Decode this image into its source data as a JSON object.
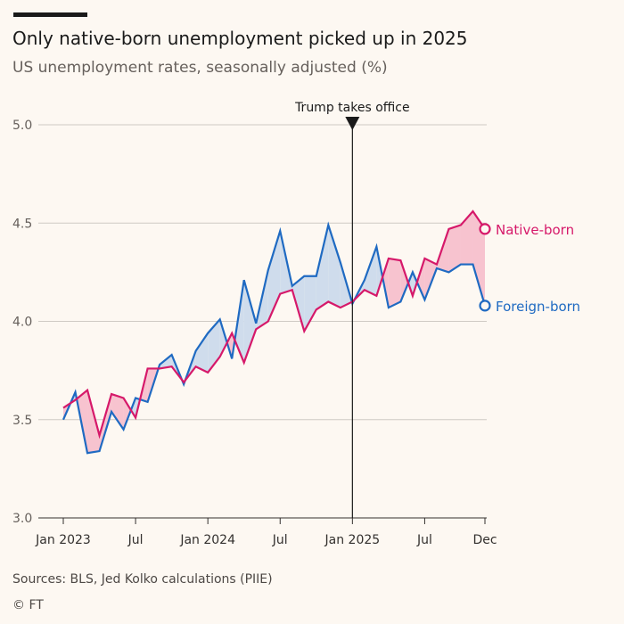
{
  "header": {
    "title": "Only native-born unemployment picked up in 2025",
    "subtitle": "US unemployment rates, seasonally adjusted (%)"
  },
  "footer": {
    "source": "Sources: BLS, Jed Kolko calculations (PIIE)",
    "credit": "© FT"
  },
  "colors": {
    "native": "#d6196a",
    "foreign": "#1f6ac2",
    "native_fill": "#f7c3cf",
    "foreign_fill": "#cfdcec",
    "grid": "#cfcac4",
    "axis": "#33302e"
  },
  "chart_data": {
    "type": "line",
    "title": "Only native-born unemployment picked up in 2025",
    "subtitle": "US unemployment rates, seasonally adjusted (%)",
    "ylim": [
      3.0,
      5.0
    ],
    "grid": true,
    "y_ticks": [
      "5.0",
      "4.5",
      "4.0",
      "3.5",
      "3.0"
    ],
    "x_ticks": [
      {
        "label": "Jan 2023",
        "x": "2023-01"
      },
      {
        "label": "Jul",
        "x": "2023-07"
      },
      {
        "label": "Jan 2024",
        "x": "2024-01"
      },
      {
        "label": "Jul",
        "x": "2024-07"
      },
      {
        "label": "Jan 2025",
        "x": "2025-01"
      },
      {
        "label": "Jul",
        "x": "2025-07"
      },
      {
        "label": "Dec",
        "x": "2025-12"
      }
    ],
    "x": [
      "2023-01",
      "2023-02",
      "2023-03",
      "2023-04",
      "2023-05",
      "2023-06",
      "2023-07",
      "2023-08",
      "2023-09",
      "2023-10",
      "2023-11",
      "2023-12",
      "2024-01",
      "2024-02",
      "2024-03",
      "2024-04",
      "2024-05",
      "2024-06",
      "2024-07",
      "2024-08",
      "2024-09",
      "2024-10",
      "2024-11",
      "2024-12",
      "2025-01",
      "2025-02",
      "2025-03",
      "2025-04",
      "2025-05",
      "2025-06",
      "2025-07",
      "2025-08",
      "2025-09",
      "2025-10",
      "2025-11",
      "2025-12"
    ],
    "series": [
      {
        "name": "Native-born",
        "values": [
          3.56,
          3.6,
          3.65,
          3.42,
          3.63,
          3.61,
          3.51,
          3.76,
          3.76,
          3.77,
          3.69,
          3.77,
          3.74,
          3.82,
          3.94,
          3.79,
          3.96,
          4.0,
          4.14,
          4.16,
          3.95,
          4.06,
          4.1,
          4.07,
          4.1,
          4.16,
          4.13,
          4.32,
          4.31,
          4.13,
          4.32,
          4.29,
          4.47,
          4.49,
          4.56,
          4.47
        ]
      },
      {
        "name": "Foreign-born",
        "values": [
          3.5,
          3.64,
          3.33,
          3.34,
          3.54,
          3.45,
          3.61,
          3.59,
          3.78,
          3.83,
          3.68,
          3.85,
          3.94,
          4.01,
          3.81,
          4.21,
          3.99,
          4.26,
          4.46,
          4.18,
          4.23,
          4.23,
          4.49,
          4.3,
          4.09,
          4.21,
          4.38,
          4.07,
          4.1,
          4.25,
          4.11,
          4.27,
          4.25,
          4.29,
          4.29,
          4.08
        ]
      }
    ],
    "annotations": [
      {
        "text": "Trump takes office",
        "x": "2025-01"
      }
    ],
    "labels": [
      {
        "series": "Native-born",
        "text": "Native-born"
      },
      {
        "series": "Foreign-born",
        "text": "Foreign-born"
      }
    ]
  }
}
